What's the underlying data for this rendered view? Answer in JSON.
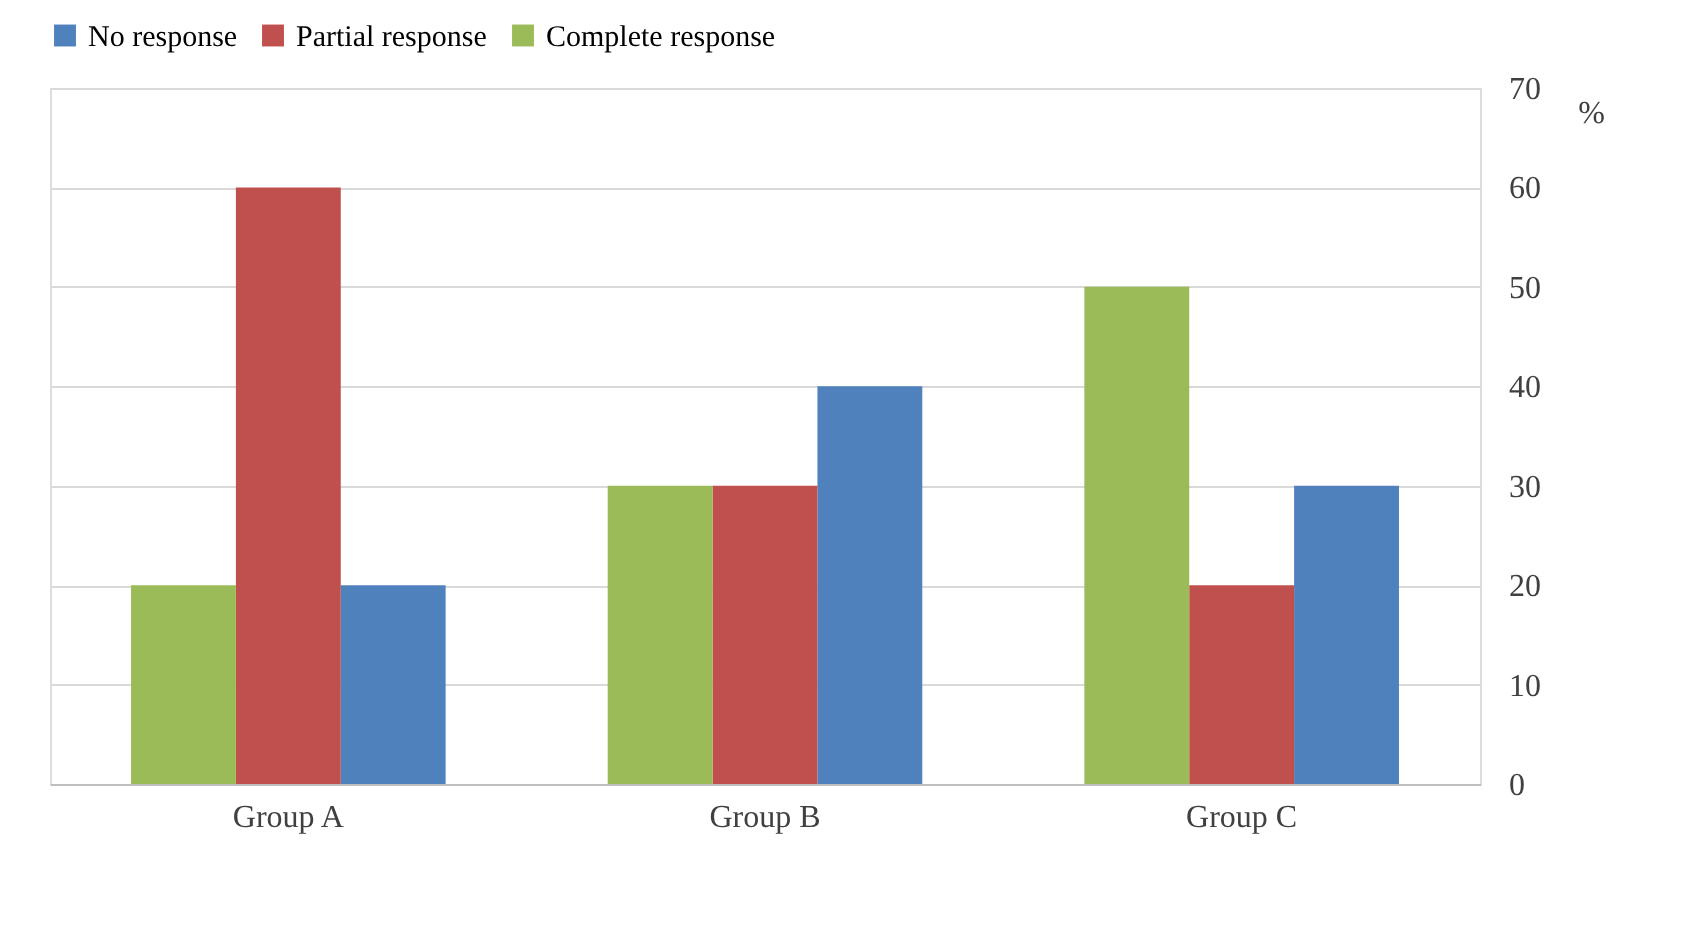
{
  "chart_data": {
    "type": "bar",
    "categories": [
      "Group A",
      "Group B",
      "Group C"
    ],
    "series": [
      {
        "name": "No response",
        "color": "#4f81bd",
        "values": [
          20,
          40,
          30
        ]
      },
      {
        "name": "Partial response",
        "color": "#c0504d",
        "values": [
          60,
          30,
          20
        ]
      },
      {
        "name": "Complete response",
        "color": "#9bbb59",
        "values": [
          20,
          30,
          50
        ]
      }
    ],
    "ylabel": "%",
    "ylim": [
      0,
      70
    ],
    "yticks": [
      0,
      10,
      20,
      30,
      40,
      50,
      60,
      70
    ],
    "grid": "y",
    "legend": "top"
  }
}
